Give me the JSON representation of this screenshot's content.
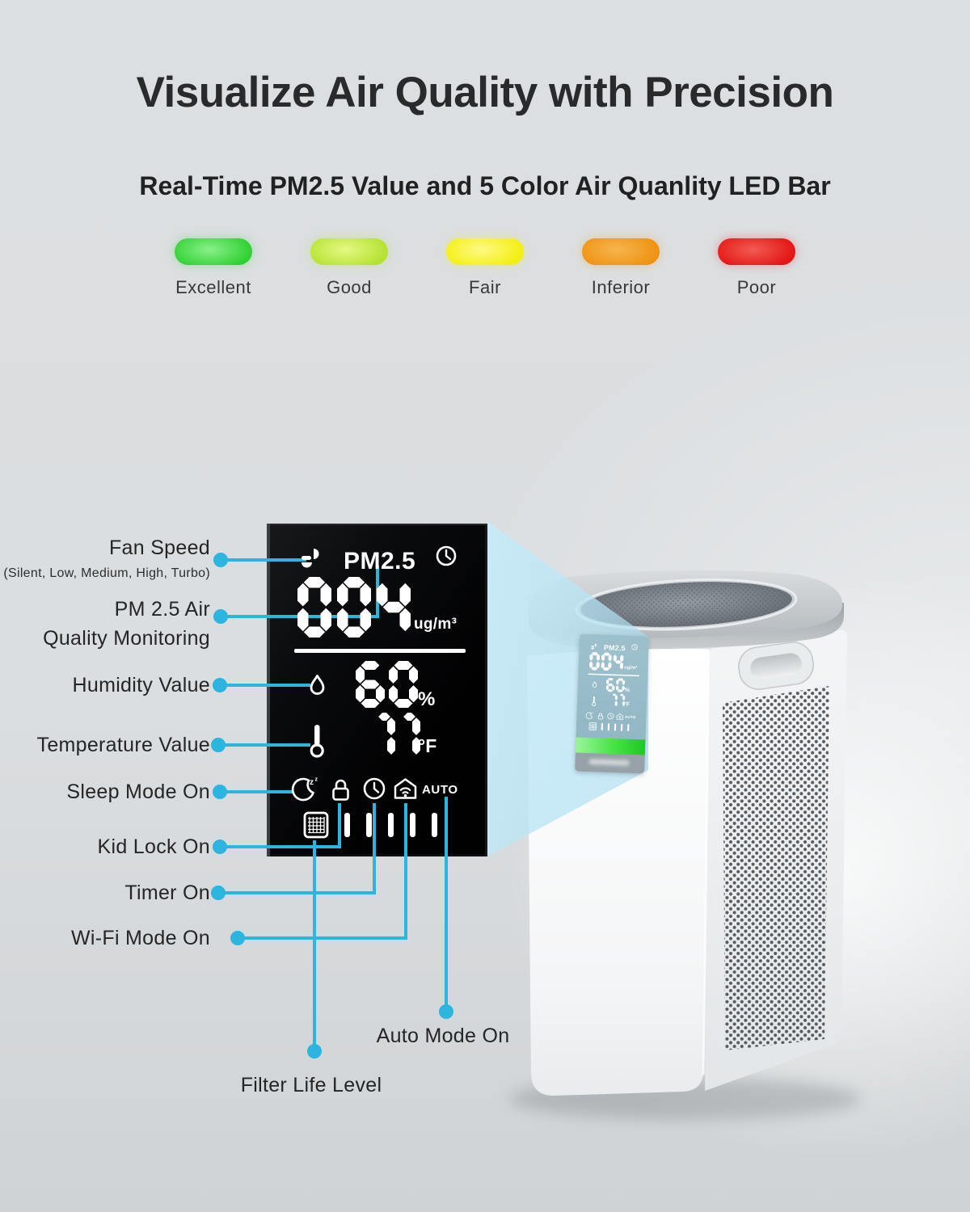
{
  "header": {
    "title": "Visualize Air Quality with Precision",
    "subtitle": "Real-Time PM2.5 Value and 5 Color Air Quanlity LED Bar"
  },
  "led_bar": {
    "levels": [
      {
        "label": "Excellent",
        "color": "#2fd032",
        "glow": "#8af08a"
      },
      {
        "label": "Good",
        "color": "#b4e231",
        "glow": "#e5f884"
      },
      {
        "label": "Fair",
        "color": "#f4ef0e",
        "glow": "#fdfa86"
      },
      {
        "label": "Inferior",
        "color": "#ef9212",
        "glow": "#f6b54e"
      },
      {
        "label": "Poor",
        "color": "#e31515",
        "glow": "#f25b52"
      }
    ]
  },
  "display": {
    "pm25_label": "PM2.5",
    "pm25_value": "004",
    "pm25_unit": "ug/m³",
    "humidity_value": "60",
    "humidity_unit": "%",
    "temperature_value": "77",
    "temperature_unit": "°F",
    "auto_label": "AUTO",
    "filter_bars": 5
  },
  "callouts": {
    "fan_speed": {
      "label": "Fan Speed",
      "sub": "(Silent, Low, Medium, High, Turbo)"
    },
    "pm25": {
      "label_line1": "PM 2.5 Air",
      "label_line2": "Quality Monitoring"
    },
    "humidity": {
      "label": "Humidity Value"
    },
    "temperature": {
      "label": "Temperature Value"
    },
    "sleep": {
      "label": "Sleep Mode On"
    },
    "kid_lock": {
      "label": "Kid Lock On"
    },
    "timer": {
      "label": "Timer On"
    },
    "wifi": {
      "label": "Wi-Fi Mode On"
    },
    "auto": {
      "label": "Auto Mode On"
    },
    "filter": {
      "label": "Filter Life Level"
    }
  },
  "colors": {
    "accent": "#2bb5df",
    "panel_bg": "#050608",
    "beam": "#bfe7f4",
    "screen_green": "#3ddc3d"
  }
}
